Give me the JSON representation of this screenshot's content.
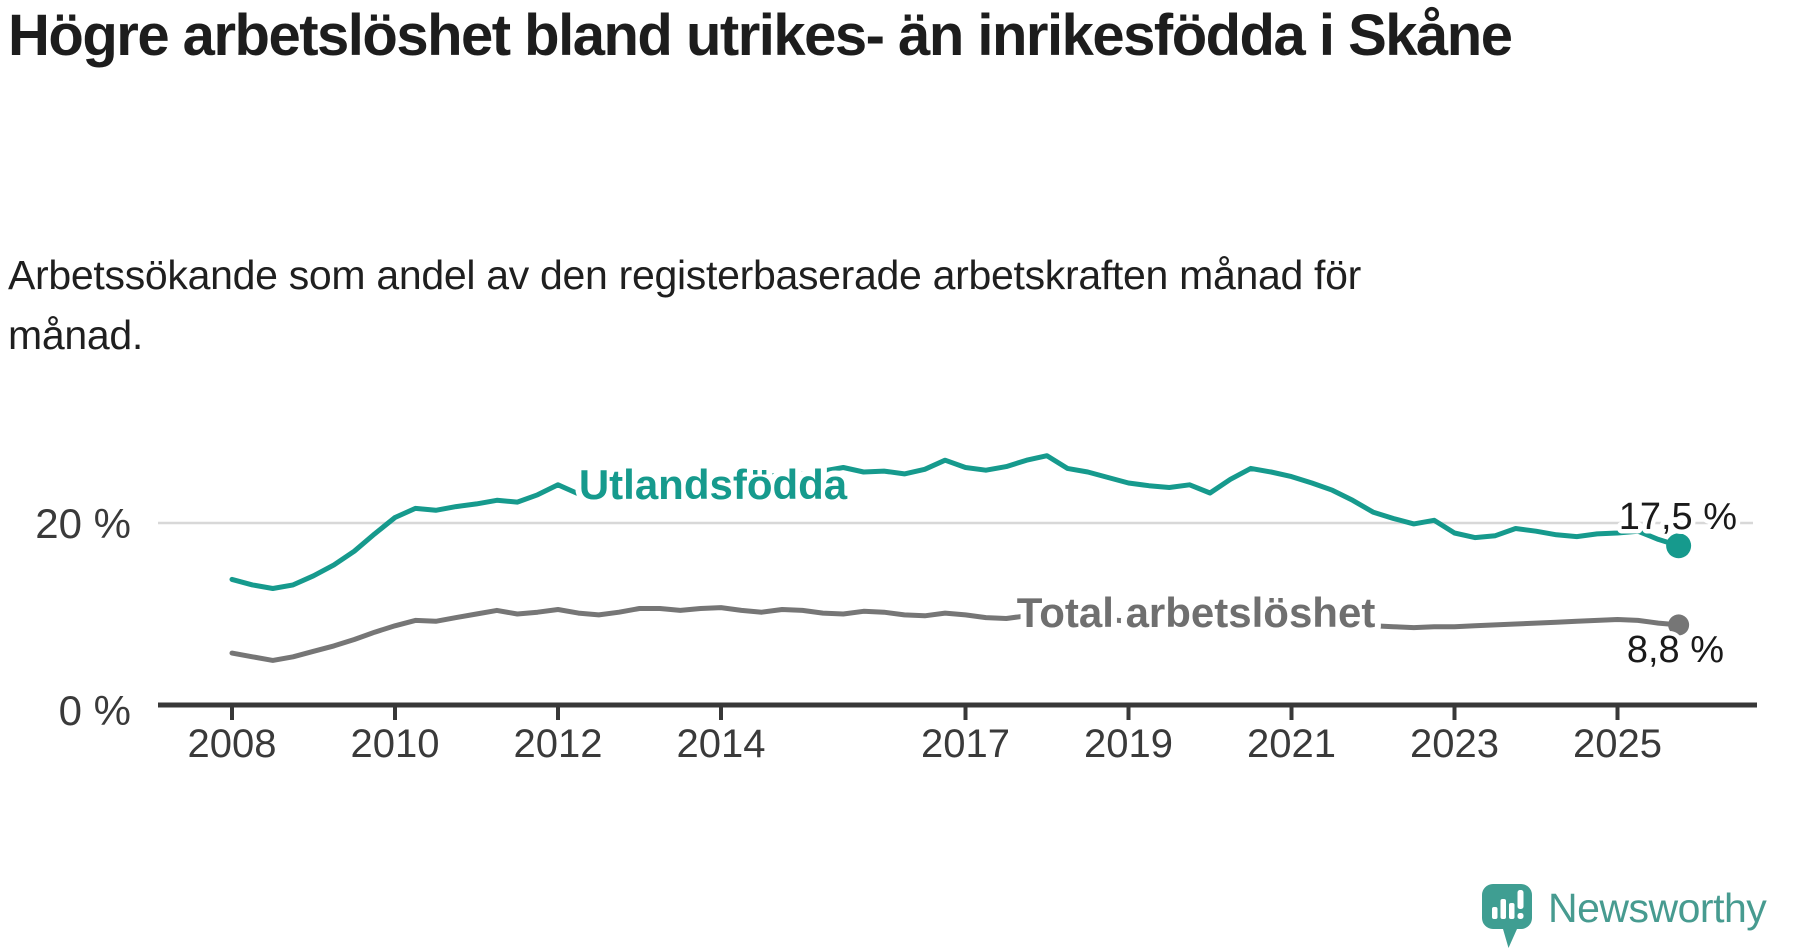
{
  "page": {
    "title": "Högre arbetslöshet bland utrikes- än inrikesfödda i Skåne",
    "subtitle": "Arbetssökande som andel av den registerbaserade arbetskraften månad för månad.",
    "background_color": "#ffffff"
  },
  "branding": {
    "logo_text": "Newsworthy",
    "logo_color": "#479b90",
    "logo_icon": "bar-chart-speech-bubble"
  },
  "chart_data": {
    "type": "line",
    "title": "Högre arbetslöshet bland utrikes- än inrikesfödda i Skåne",
    "subtitle": "Arbetssökande som andel av den registerbaserade arbetskraften månad för månad.",
    "unit": "%",
    "x_start": 2008.0,
    "x_step": 0.25,
    "x_end": 2025.75,
    "xlim": [
      2007.1,
      2026.7
    ],
    "ylim": [
      0,
      30
    ],
    "x_ticks": [
      2008,
      2010,
      2012,
      2014,
      2017,
      2019,
      2021,
      2023,
      2025
    ],
    "y_ticks": [
      {
        "value": 0,
        "label": "0 %"
      },
      {
        "value": 20,
        "label": "20 %"
      }
    ],
    "grid": "single-horizontal-gridline-at-20",
    "legend": "inline-series-labels",
    "colors": {
      "axis": "#383838",
      "tick_label": "#3a3a3a",
      "gridline": "#d8d8d8",
      "end_label_text": "#1a1a1a"
    },
    "series": [
      {
        "name": "Utlandsfödda",
        "color": "#169a8d",
        "end_value": 17.5,
        "end_label": "17,5 %",
        "values": [
          13.8,
          13.2,
          12.8,
          13.2,
          14.2,
          15.4,
          16.9,
          18.8,
          20.6,
          21.6,
          21.4,
          21.8,
          22.1,
          22.5,
          22.3,
          23.1,
          24.2,
          23.2,
          22.8,
          23.1,
          23.5,
          23.8,
          24.1,
          24.4,
          24.6,
          24.9,
          25.1,
          25.3,
          25.4,
          25.7,
          26.1,
          25.6,
          25.7,
          25.4,
          25.9,
          26.9,
          26.1,
          25.8,
          26.2,
          26.9,
          27.4,
          26.0,
          25.6,
          25.0,
          24.4,
          24.1,
          23.9,
          24.2,
          23.3,
          24.8,
          26.0,
          25.6,
          25.1,
          24.4,
          23.6,
          22.5,
          21.2,
          20.5,
          19.9,
          20.3,
          18.9,
          18.4,
          18.6,
          19.4,
          19.1,
          18.7,
          18.5,
          18.8,
          18.9,
          19.1,
          18.2,
          17.5
        ]
      },
      {
        "name": "Total arbetslöshet",
        "color": "#767676",
        "end_value": 8.8,
        "end_label": "8,8 %",
        "values": [
          5.7,
          5.3,
          4.9,
          5.3,
          5.9,
          6.5,
          7.2,
          8.0,
          8.7,
          9.3,
          9.2,
          9.6,
          10.0,
          10.4,
          10.0,
          10.2,
          10.5,
          10.1,
          9.9,
          10.2,
          10.6,
          10.6,
          10.4,
          10.6,
          10.7,
          10.4,
          10.2,
          10.5,
          10.4,
          10.1,
          10.0,
          10.3,
          10.2,
          9.9,
          9.8,
          10.1,
          9.9,
          9.6,
          9.5,
          9.8,
          9.6,
          9.3,
          9.2,
          9.4,
          9.2,
          9.0,
          9.1,
          9.3,
          9.3,
          9.9,
          10.1,
          9.9,
          9.7,
          9.4,
          9.1,
          8.9,
          8.7,
          8.6,
          8.5,
          8.6,
          8.6,
          8.7,
          8.8,
          8.9,
          9.0,
          9.1,
          9.2,
          9.3,
          9.4,
          9.3,
          9.0,
          8.8
        ]
      }
    ]
  }
}
